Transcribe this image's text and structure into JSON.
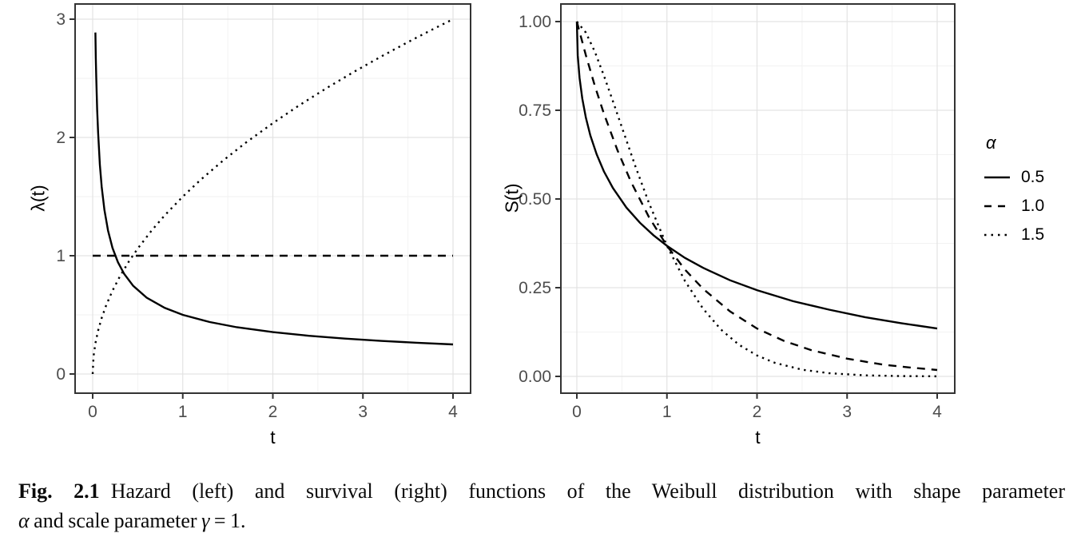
{
  "figure": {
    "caption": {
      "label": "Fig. 2.1",
      "line1_text": "Hazard (left) and survival (right) functions of the Weibull distribution with shape parameter",
      "alpha_symbol": "α",
      "line2_text": "and scale parameter",
      "gamma_symbol": "γ",
      "line2_end": "= 1."
    }
  },
  "legend": {
    "title": "α",
    "position": "right",
    "entries": [
      {
        "label": "0.5",
        "linetype": "solid"
      },
      {
        "label": "1.0",
        "linetype": "dashed"
      },
      {
        "label": "1.5",
        "linetype": "dotted"
      }
    ]
  },
  "chart_data": [
    {
      "type": "line",
      "panel": "hazard",
      "xlabel": "t",
      "ylabel": "λ(t)",
      "xlim": [
        0,
        4
      ],
      "ylim": [
        0,
        3
      ],
      "grid": true,
      "x_ticks": [
        0,
        1,
        2,
        3,
        4
      ],
      "x_tick_labels": [
        "0",
        "1",
        "2",
        "3",
        "4"
      ],
      "y_ticks": [
        0,
        1,
        2,
        3
      ],
      "y_tick_labels": [
        "0",
        "1",
        "2",
        "3"
      ],
      "x_minor_ticks": [
        0.5,
        1.5,
        2.5,
        3.5
      ],
      "y_minor_ticks": [
        0.5,
        1.5,
        2.5
      ],
      "series": [
        {
          "name": "0.5",
          "linetype": "solid",
          "points": [
            [
              0.03,
              2.887
            ],
            [
              0.035,
              2.673
            ],
            [
              0.04,
              2.5
            ],
            [
              0.05,
              2.236
            ],
            [
              0.06,
              2.041
            ],
            [
              0.08,
              1.768
            ],
            [
              0.1,
              1.581
            ],
            [
              0.13,
              1.387
            ],
            [
              0.17,
              1.213
            ],
            [
              0.22,
              1.066
            ],
            [
              0.28,
              0.945
            ],
            [
              0.35,
              0.845
            ],
            [
              0.45,
              0.745
            ],
            [
              0.6,
              0.645
            ],
            [
              0.8,
              0.559
            ],
            [
              1.0,
              0.5
            ],
            [
              1.3,
              0.439
            ],
            [
              1.6,
              0.395
            ],
            [
              2.0,
              0.354
            ],
            [
              2.4,
              0.323
            ],
            [
              2.8,
              0.299
            ],
            [
              3.2,
              0.28
            ],
            [
              3.6,
              0.264
            ],
            [
              4.0,
              0.25
            ]
          ]
        },
        {
          "name": "1.0",
          "linetype": "dashed",
          "points": [
            [
              0,
              1
            ],
            [
              4,
              1
            ]
          ]
        },
        {
          "name": "1.5",
          "linetype": "dotted",
          "points": [
            [
              0,
              0
            ],
            [
              0.01,
              0.15
            ],
            [
              0.03,
              0.26
            ],
            [
              0.06,
              0.367
            ],
            [
              0.1,
              0.474
            ],
            [
              0.15,
              0.581
            ],
            [
              0.22,
              0.704
            ],
            [
              0.3,
              0.822
            ],
            [
              0.4,
              0.949
            ],
            [
              0.5,
              1.061
            ],
            [
              0.65,
              1.209
            ],
            [
              0.8,
              1.342
            ],
            [
              1.0,
              1.5
            ],
            [
              1.2,
              1.643
            ],
            [
              1.45,
              1.806
            ],
            [
              1.7,
              1.956
            ],
            [
              2.0,
              2.121
            ],
            [
              2.3,
              2.275
            ],
            [
              2.6,
              2.419
            ],
            [
              2.9,
              2.555
            ],
            [
              3.2,
              2.683
            ],
            [
              3.5,
              2.806
            ],
            [
              3.75,
              2.905
            ],
            [
              4.0,
              3.0
            ]
          ]
        }
      ]
    },
    {
      "type": "line",
      "panel": "survival",
      "xlabel": "t",
      "ylabel": "S(t)",
      "xlim": [
        0,
        4
      ],
      "ylim": [
        0,
        1
      ],
      "grid": true,
      "x_ticks": [
        0,
        1,
        2,
        3,
        4
      ],
      "x_tick_labels": [
        "0",
        "1",
        "2",
        "3",
        "4"
      ],
      "y_ticks": [
        0,
        0.25,
        0.5,
        0.75,
        1
      ],
      "y_tick_labels": [
        "0.00",
        "0.25",
        "0.50",
        "0.75",
        "1.00"
      ],
      "x_minor_ticks": [
        0.5,
        1.5,
        2.5,
        3.5
      ],
      "y_minor_ticks": [
        0.125,
        0.375,
        0.625,
        0.875
      ],
      "series": [
        {
          "name": "0.5",
          "linetype": "solid",
          "points": [
            [
              0,
              1
            ],
            [
              0.01,
              0.905
            ],
            [
              0.03,
              0.841
            ],
            [
              0.06,
              0.783
            ],
            [
              0.1,
              0.729
            ],
            [
              0.15,
              0.679
            ],
            [
              0.22,
              0.626
            ],
            [
              0.3,
              0.578
            ],
            [
              0.4,
              0.531
            ],
            [
              0.55,
              0.476
            ],
            [
              0.7,
              0.433
            ],
            [
              0.85,
              0.398
            ],
            [
              1.0,
              0.368
            ],
            [
              1.2,
              0.334
            ],
            [
              1.4,
              0.306
            ],
            [
              1.7,
              0.271
            ],
            [
              2.0,
              0.243
            ],
            [
              2.4,
              0.212
            ],
            [
              2.8,
              0.188
            ],
            [
              3.2,
              0.167
            ],
            [
              3.6,
              0.15
            ],
            [
              4.0,
              0.135
            ]
          ]
        },
        {
          "name": "1.0",
          "linetype": "dashed",
          "points": [
            [
              0,
              1
            ],
            [
              0.1,
              0.905
            ],
            [
              0.2,
              0.819
            ],
            [
              0.3,
              0.741
            ],
            [
              0.45,
              0.638
            ],
            [
              0.6,
              0.549
            ],
            [
              0.8,
              0.449
            ],
            [
              1.0,
              0.368
            ],
            [
              1.2,
              0.301
            ],
            [
              1.4,
              0.247
            ],
            [
              1.7,
              0.183
            ],
            [
              2.0,
              0.135
            ],
            [
              2.3,
              0.1
            ],
            [
              2.6,
              0.074
            ],
            [
              3.0,
              0.05
            ],
            [
              3.4,
              0.033
            ],
            [
              3.7,
              0.025
            ],
            [
              4.0,
              0.018
            ]
          ]
        },
        {
          "name": "1.5",
          "linetype": "dotted",
          "points": [
            [
              0,
              1
            ],
            [
              0.1,
              0.969
            ],
            [
              0.2,
              0.915
            ],
            [
              0.3,
              0.848
            ],
            [
              0.4,
              0.776
            ],
            [
              0.5,
              0.702
            ],
            [
              0.65,
              0.592
            ],
            [
              0.8,
              0.489
            ],
            [
              1.0,
              0.368
            ],
            [
              1.2,
              0.269
            ],
            [
              1.4,
              0.191
            ],
            [
              1.6,
              0.132
            ],
            [
              1.8,
              0.089
            ],
            [
              2.0,
              0.059
            ],
            [
              2.2,
              0.038
            ],
            [
              2.5,
              0.019
            ],
            [
              2.8,
              0.009
            ],
            [
              3.2,
              0.003
            ],
            [
              3.6,
              0.001
            ],
            [
              4.0,
              0.0003
            ]
          ]
        }
      ]
    }
  ]
}
